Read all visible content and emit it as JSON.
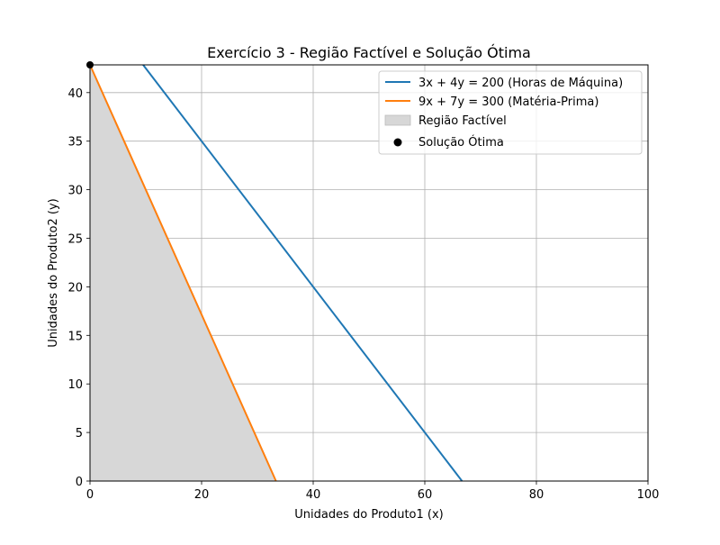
{
  "chart_data": {
    "type": "line",
    "title": "Exercício 3 - Região Factível e Solução Ótima",
    "xlabel": "Unidades do Produto1 (x)",
    "ylabel": "Unidades do Produto2 (y)",
    "xlim": [
      0,
      100
    ],
    "ylim": [
      0,
      42.857
    ],
    "xticks": [
      "0",
      "20",
      "40",
      "60",
      "80",
      "100"
    ],
    "yticks": [
      "0",
      "5",
      "10",
      "15",
      "20",
      "25",
      "30",
      "35",
      "40"
    ],
    "grid": true,
    "legend_position": "top-right",
    "series": [
      {
        "name": "3x + 4y = 200 (Horas de Máquina)",
        "color": "#1f77b4",
        "x": [
          9.52,
          66.67
        ],
        "y": [
          42.857,
          0
        ]
      },
      {
        "name": "9x + 7y = 300 (Matéria-Prima)",
        "color": "#ff7f0e",
        "x": [
          0,
          33.33
        ],
        "y": [
          42.857,
          0
        ]
      }
    ],
    "feasible_region": {
      "name": "Região Factível",
      "color": "#d7d7d7",
      "polygon": [
        [
          0,
          0
        ],
        [
          0,
          42.857
        ],
        [
          33.33,
          0
        ]
      ]
    },
    "optimal_point": {
      "name": "Solução Ótima",
      "color": "#000000",
      "x": 0,
      "y": 42.857
    }
  }
}
